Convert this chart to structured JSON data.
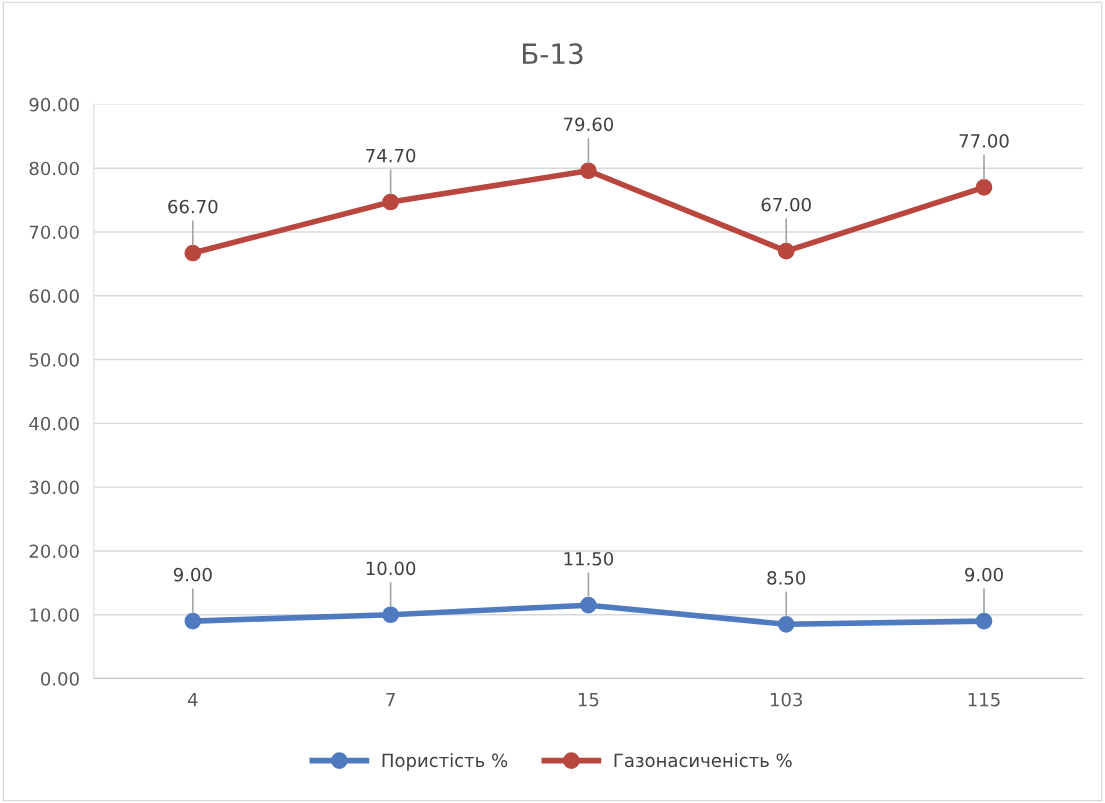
{
  "chart_data": {
    "type": "line",
    "title": "Б-13",
    "categories": [
      "4",
      "7",
      "15",
      "103",
      "115"
    ],
    "series": [
      {
        "name": "Пористість %",
        "color": "#4f7ac0",
        "values": [
          9.0,
          10.0,
          11.5,
          8.5,
          9.0
        ],
        "value_labels": [
          "9.00",
          "10.00",
          "11.50",
          "8.50",
          "9.00"
        ]
      },
      {
        "name": "Газонасиченість %",
        "color": "#b9473f",
        "values": [
          66.7,
          74.7,
          79.6,
          67.0,
          77.0
        ],
        "value_labels": [
          "66.70",
          "74.70",
          "79.60",
          "67.00",
          "77.00"
        ]
      }
    ],
    "ylim": [
      0,
      90
    ],
    "yticks": [
      {
        "value": 0,
        "label": "0.00"
      },
      {
        "value": 10,
        "label": "10.00"
      },
      {
        "value": 20,
        "label": "20.00"
      },
      {
        "value": 30,
        "label": "30.00"
      },
      {
        "value": 40,
        "label": "40.00"
      },
      {
        "value": 50,
        "label": "50.00"
      },
      {
        "value": 60,
        "label": "60.00"
      },
      {
        "value": 70,
        "label": "70.00"
      },
      {
        "value": 80,
        "label": "80.00"
      },
      {
        "value": 90,
        "label": "90.00"
      }
    ],
    "grid": "y",
    "legend": "bottom",
    "marker": "circle",
    "line_style": "solid"
  }
}
